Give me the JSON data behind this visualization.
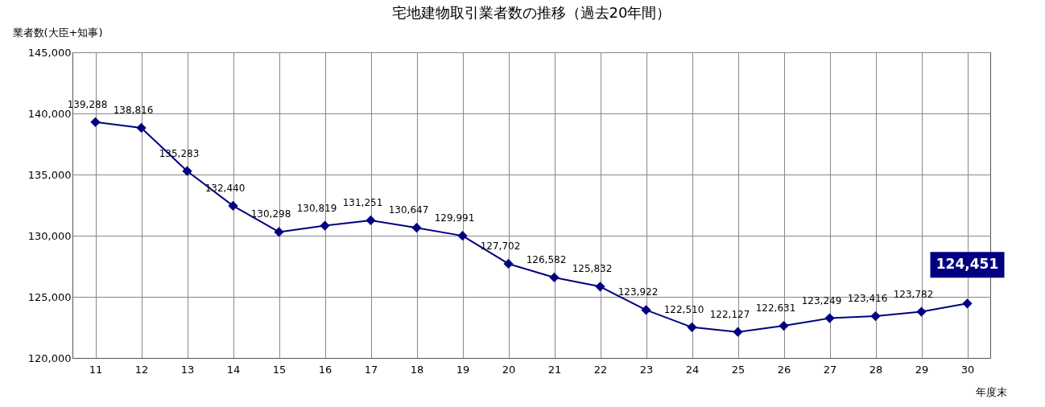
{
  "chart_data": {
    "type": "line",
    "title": "宅地建物取引業者数の推移（過去20年間）",
    "ylabel": "業者数(大臣+知事)",
    "xlabel": "年度末",
    "categories": [
      "11",
      "12",
      "13",
      "14",
      "15",
      "16",
      "17",
      "18",
      "19",
      "20",
      "21",
      "22",
      "23",
      "24",
      "25",
      "26",
      "27",
      "28",
      "29",
      "30"
    ],
    "series": [
      {
        "color": "#000080",
        "values": [
          139288,
          138816,
          135283,
          132440,
          130298,
          130819,
          131251,
          130647,
          129991,
          127702,
          126582,
          125832,
          123922,
          122510,
          122127,
          122631,
          123249,
          123416,
          123782,
          124451
        ],
        "value_labels": [
          "139,288",
          "138,816",
          "135,283",
          "132,440",
          "130,298",
          "130,819",
          "131,251",
          "130,647",
          "129,991",
          "127,702",
          "126,582",
          "125,832",
          "123,922",
          "122,510",
          "122,127",
          "122,631",
          "123,249",
          "123,416",
          "123,782",
          "124,451"
        ]
      }
    ],
    "ylim": [
      120000,
      145000
    ],
    "yticks": [
      {
        "value": 120000,
        "label": "120,000"
      },
      {
        "value": 125000,
        "label": "125,000"
      },
      {
        "value": 130000,
        "label": "130,000"
      },
      {
        "value": 135000,
        "label": "135,000"
      },
      {
        "value": 140000,
        "label": "140,000"
      },
      {
        "value": 145000,
        "label": "145,000"
      }
    ],
    "grid": true,
    "marker": "diamond",
    "line_style": "solid"
  }
}
